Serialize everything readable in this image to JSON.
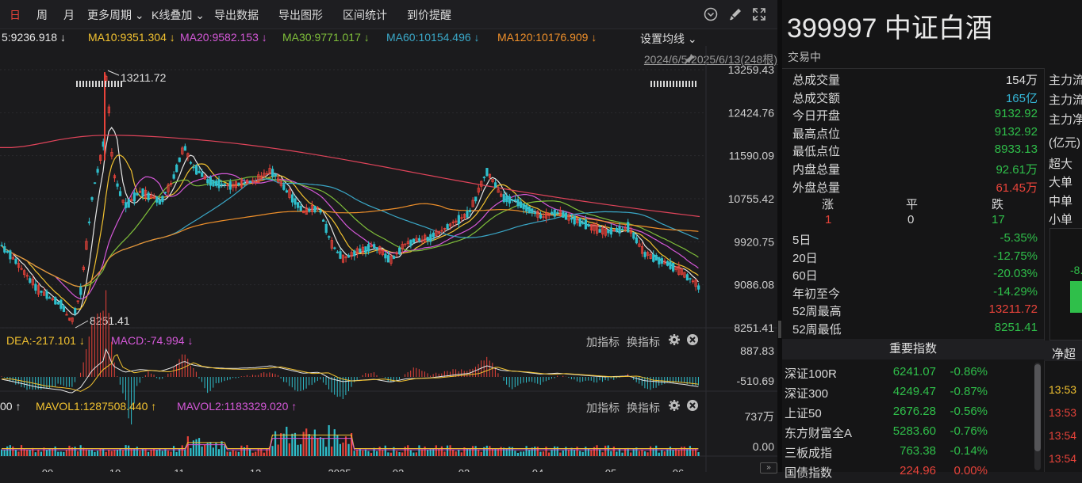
{
  "toolbar": {
    "items": [
      "日",
      "周",
      "月",
      "更多周期 ⌄",
      "K线叠加 ⌄",
      "导出数据",
      "导出图形",
      "区间统计",
      "到价提醒"
    ]
  },
  "ma_bar": {
    "ma5": "5:9236.918 ↓",
    "ma10": "MA10:9351.304 ↓",
    "ma20": "MA20:9582.153 ↓",
    "ma30": "MA30:9771.017 ↓",
    "ma60": "MA60:10154.496 ↓",
    "ma120": "MA120:10176.909 ↓",
    "settings": "设置均线 ⌄",
    "range": "2024/6/5-2025/6/13(248根)"
  },
  "colors": {
    "ma5": "#e6e6e6",
    "ma10": "#f2c230",
    "ma20": "#d458d8",
    "ma30": "#7fbf3a",
    "ma60": "#3aa8c8",
    "ma120": "#f0902a",
    "ma250": "#e0445a",
    "up": "#e8433a",
    "down": "#2fbfcc",
    "grid": "#2b2b2f"
  },
  "chart_data": {
    "type": "candlestick",
    "price_axis": [
      "13259.43",
      "12424.76",
      "11590.09",
      "10755.42",
      "9920.75",
      "9086.08",
      "8251.41"
    ],
    "price_range": [
      8251.41,
      13259.43
    ],
    "annotations": {
      "high": "13211.72",
      "low": "8251.41"
    },
    "x_ticks": [
      "09",
      "10",
      "11",
      "12",
      "2025",
      "02",
      "03",
      "04",
      "05",
      "06"
    ],
    "macd_axis": [
      "887.83",
      "-510.69"
    ],
    "vol_axis": [
      "737万",
      "0.00"
    ]
  },
  "macd_bar": {
    "dea": "DEA:-217.101 ↓",
    "macd": "MACD:-74.994 ↓",
    "add": "加指标",
    "swap": "换指标"
  },
  "vol_bar": {
    "prefix": "00 ↑",
    "mavol1": "MAVOL1:1287508.440 ↑",
    "mavol2": "MAVOL2:1183329.020 ↑",
    "add": "加指标",
    "swap": "换指标"
  },
  "quote": {
    "code_title": "399997 中证白酒",
    "status": "交易中",
    "stats": [
      {
        "label": "总成交量",
        "value": "154万",
        "color": "white"
      },
      {
        "label": "总成交额",
        "value": "165亿",
        "color": "cyan"
      },
      {
        "label": "今日开盘",
        "value": "9132.92",
        "color": "green"
      },
      {
        "label": "最高点位",
        "value": "9132.92",
        "color": "green"
      },
      {
        "label": "最低点位",
        "value": "8933.13",
        "color": "green"
      },
      {
        "label": "内盘总量",
        "value": "92.61万",
        "color": "green"
      },
      {
        "label": "外盘总量",
        "value": "61.45万",
        "color": "red"
      }
    ],
    "breadth_labels": [
      "涨",
      "平",
      "跌"
    ],
    "breadth_values": [
      "1",
      "0",
      "17"
    ],
    "periods": [
      {
        "label": "5日",
        "value": "-5.35%",
        "color": "green"
      },
      {
        "label": "20日",
        "value": "-12.75%",
        "color": "green"
      },
      {
        "label": "60日",
        "value": "-20.03%",
        "color": "green"
      },
      {
        "label": "年初至今",
        "value": "-14.29%",
        "color": "green"
      },
      {
        "label": "52周最高",
        "value": "13211.72",
        "color": "red"
      },
      {
        "label": "52周最低",
        "value": "8251.41",
        "color": "green"
      }
    ],
    "index_header": "重要指数",
    "indices": [
      {
        "name": "深证100R",
        "price": "6241.07",
        "pct": "-0.86%",
        "color": "green"
      },
      {
        "name": "深证300",
        "price": "4249.47",
        "pct": "-0.87%",
        "color": "green"
      },
      {
        "name": "上证50",
        "price": "2676.28",
        "pct": "-0.56%",
        "color": "green"
      },
      {
        "name": "东方财富全A",
        "price": "5283.60",
        "pct": "-0.76%",
        "color": "green"
      },
      {
        "name": "三板成指",
        "price": "763.38",
        "pct": "-0.14%",
        "color": "green"
      },
      {
        "name": "国债指数",
        "price": "224.96",
        "pct": "0.00%",
        "color": "red"
      }
    ],
    "flow_labels": [
      "主力流",
      "主力流",
      "主力净",
      "(亿元)",
      "超大",
      "大单",
      "中单",
      "小单"
    ],
    "flow_value": "-8.",
    "flow_net": "净超",
    "flow_times": [
      "13:53",
      "13:53",
      "13:54",
      "13:54"
    ]
  }
}
